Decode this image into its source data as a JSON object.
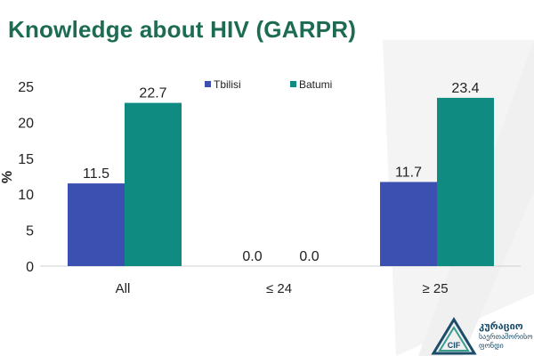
{
  "slide": {
    "title": "Knowledge about HIV (GARPR)"
  },
  "colors": {
    "title": "#1c6b52",
    "tbilisi": "#3b50b0",
    "batumi": "#0f8b82",
    "logo": "#1b4d6b"
  },
  "chart_data": {
    "type": "bar",
    "categories": [
      "All",
      "≤ 24",
      "≥ 25"
    ],
    "series": [
      {
        "name": "Tbilisi",
        "values": [
          11.5,
          0.0,
          11.7
        ],
        "labels": [
          "11.5",
          "0.0",
          "11.7"
        ],
        "color": "#3b50b0"
      },
      {
        "name": "Batumi",
        "values": [
          22.7,
          0.0,
          23.4
        ],
        "labels": [
          "22.7",
          "0.0",
          "23.4"
        ],
        "color": "#0f8b82"
      }
    ],
    "ylabel": "%",
    "ylim": [
      0,
      25
    ],
    "yticks": [
      0,
      5,
      10,
      15,
      20,
      25
    ],
    "legend_position": "top-center",
    "grid": false
  },
  "logo": {
    "badge_text": "CIF",
    "name": "კურაციო",
    "sub_lines": [
      "საერთაშორისო",
      "ფონდი"
    ],
    "icon": "triangle-logo-icon"
  }
}
